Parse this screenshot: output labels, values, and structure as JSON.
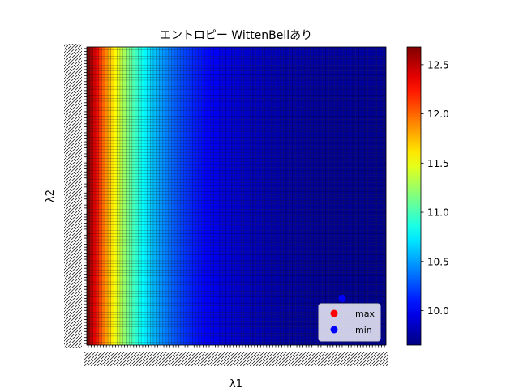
{
  "chart_data": {
    "type": "heatmap",
    "title": "エントロピー WittenBellあり",
    "xlabel": "λ1",
    "ylabel": "λ2",
    "x_tick_labels_legible": false,
    "y_tick_labels_legible": false,
    "grid_cells": {
      "columns": 99,
      "rows": 99
    },
    "colormap": "jet",
    "colorbar": {
      "ticks": [
        10.0,
        10.5,
        11.0,
        11.5,
        12.0,
        12.5
      ],
      "tick_labels": [
        "10.0",
        "10.5",
        "11.0",
        "11.5",
        "12.0",
        "12.5"
      ],
      "range": [
        9.65,
        12.68
      ]
    },
    "value_model": {
      "description": "entropy decreases strongly with λ1 (columns), nearly flat in λ2",
      "min_value": 9.68,
      "max_value": 12.68
    },
    "markers": [
      {
        "name": "max",
        "color": "#ff0000",
        "column_index": null,
        "row_index": null
      },
      {
        "name": "min",
        "color": "#0000ff",
        "column_index": 84,
        "row_index": 15
      }
    ],
    "legend": {
      "position": "lower-right",
      "entries": [
        "max",
        "min"
      ]
    }
  }
}
